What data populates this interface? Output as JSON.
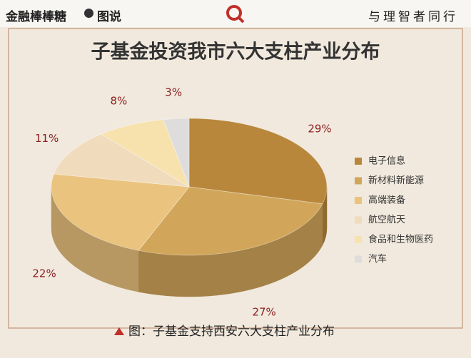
{
  "header": {
    "brand": "金融棒棒糖",
    "section": "图说",
    "slogan": "与理智者同行"
  },
  "chart_data": {
    "type": "pie3d",
    "title": "子基金投资我市六大支柱产业分布",
    "categories": [
      "电子信息",
      "新材料新能源",
      "高端装备",
      "航空航天",
      "食品和生物医药",
      "汽车"
    ],
    "values": [
      29,
      27,
      22,
      11,
      8,
      3
    ],
    "value_labels": [
      "29%",
      "27%",
      "22%",
      "11%",
      "8%",
      "3%"
    ],
    "colors": [
      "#b8873c",
      "#d2a65a",
      "#eac37f",
      "#f0dcbc",
      "#f7e2ae",
      "#dedddb"
    ],
    "legend": "right"
  },
  "caption": "图：子基金支持西安六大支柱产业分布"
}
